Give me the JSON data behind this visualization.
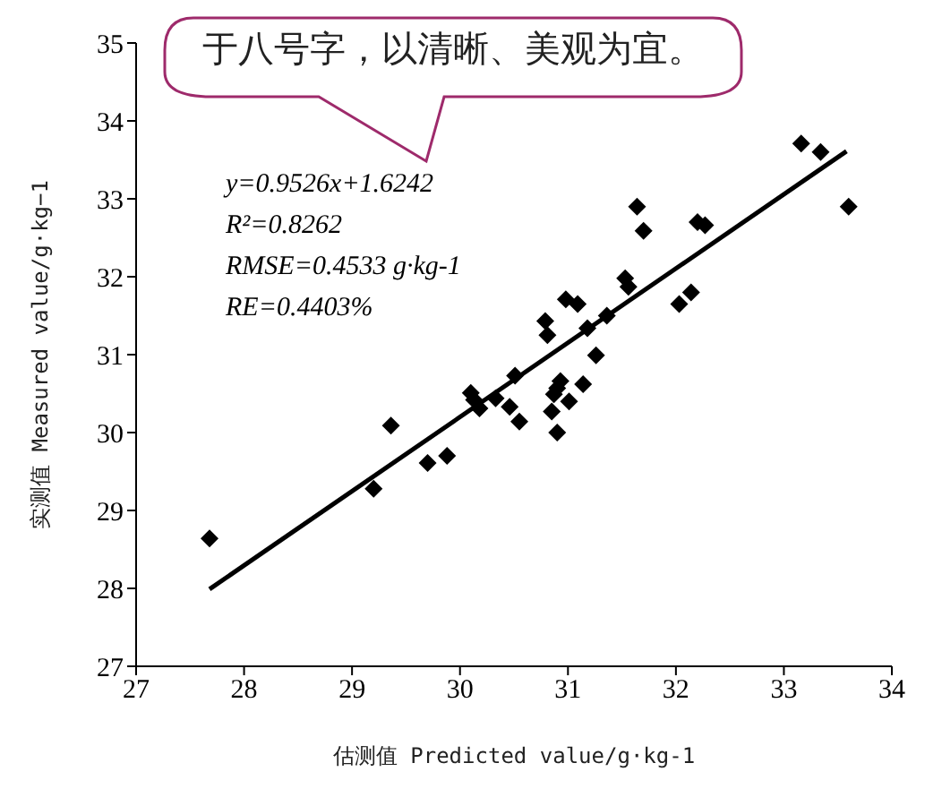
{
  "chart_data": {
    "type": "scatter",
    "xlabel": "估测值 Predicted value/g·kg-1",
    "ylabel": "实测值 Measured value/g·kg−1",
    "xlim": [
      27,
      34
    ],
    "xticks": [
      27,
      28,
      29,
      30,
      31,
      32,
      33,
      34
    ],
    "ylim": [
      27,
      35
    ],
    "yticks": [
      27,
      28,
      29,
      30,
      31,
      32,
      33,
      34,
      35
    ],
    "marker": "diamond",
    "annotations": [
      "y=0.9526x+1.6242",
      "R²=0.8262",
      "RMSE=0.4533 g·kg-1",
      "RE=0.4403%",
      "于八号字，以清晰、美观为宜。"
    ],
    "series": [
      {
        "color": "#000000",
        "x": [
          27.68,
          29.2,
          29.36,
          29.7,
          29.88,
          30.1,
          30.13,
          30.18,
          30.33,
          30.46,
          30.51,
          30.55,
          30.79,
          30.81,
          30.85,
          30.87,
          30.9,
          30.9,
          30.93,
          30.98,
          31.01,
          31.09,
          31.14,
          31.18,
          31.26,
          31.36,
          31.53,
          31.56,
          31.64,
          31.7,
          32.03,
          32.14,
          32.2,
          32.27,
          33.16,
          33.34,
          33.6
        ],
        "values": [
          28.64,
          29.28,
          30.09,
          29.61,
          29.7,
          30.51,
          30.42,
          30.31,
          30.44,
          30.33,
          30.73,
          30.14,
          31.43,
          31.25,
          30.27,
          30.49,
          30.57,
          30.0,
          30.66,
          31.71,
          30.4,
          31.65,
          30.62,
          31.34,
          30.99,
          31.5,
          31.98,
          31.87,
          32.9,
          32.59,
          31.65,
          31.8,
          32.7,
          32.66,
          33.71,
          33.6,
          32.9
        ]
      },
      {
        "type": "line",
        "color": "#000000",
        "marker": "none",
        "x": [
          27.68,
          33.58
        ],
        "values": [
          27.99,
          33.61
        ]
      }
    ]
  }
}
